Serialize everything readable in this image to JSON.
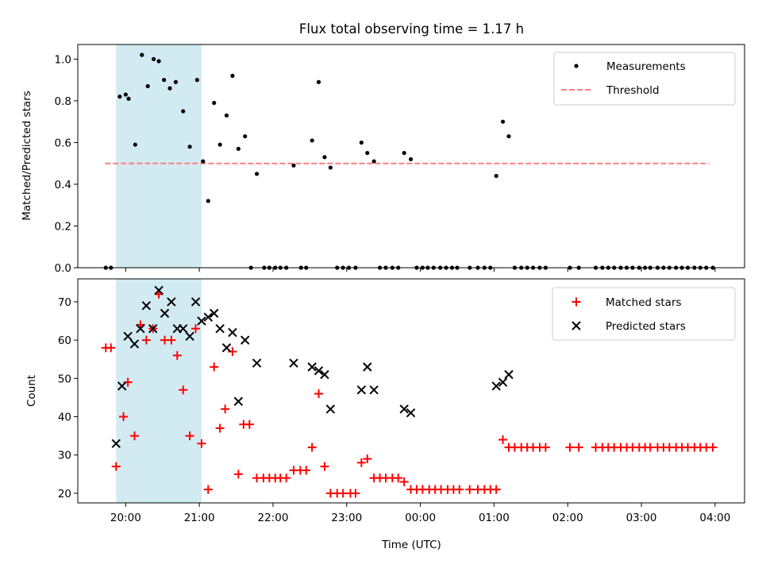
{
  "title": "Flux total observing time = 1.17 h",
  "colors": {
    "measurement": "#000000",
    "threshold": "#ff7f7f",
    "matched": "#ff0000",
    "predicted": "#000000",
    "shade": "#add8e6"
  },
  "chart_data": [
    {
      "type": "scatter",
      "ylabel": "Matched/Predicted stars",
      "xlim": [
        19.35,
        4.4
      ],
      "ylim": [
        0,
        1.07
      ],
      "yticks": [
        0.0,
        0.2,
        0.4,
        0.6,
        0.8,
        1.0
      ],
      "ytick_labels": [
        "0.0",
        "0.2",
        "0.4",
        "0.6",
        "0.8",
        "1.0"
      ],
      "threshold": 0.5,
      "threshold_range": [
        19.72,
        3.92
      ],
      "shaded_range": [
        19.87,
        21.03
      ],
      "legend": {
        "location": "upper right",
        "entries": [
          "Measurements",
          "Threshold"
        ]
      },
      "series": [
        {
          "name": "Measurements",
          "points": [
            [
              19.73,
              0.0
            ],
            [
              19.8,
              0.0
            ],
            [
              19.92,
              0.82
            ],
            [
              20.0,
              0.83
            ],
            [
              20.04,
              0.81
            ],
            [
              20.13,
              0.59
            ],
            [
              20.22,
              1.02
            ],
            [
              20.3,
              0.87
            ],
            [
              20.38,
              1.0
            ],
            [
              20.45,
              0.99
            ],
            [
              20.52,
              0.9
            ],
            [
              20.6,
              0.86
            ],
            [
              20.68,
              0.89
            ],
            [
              20.78,
              0.75
            ],
            [
              20.87,
              0.58
            ],
            [
              20.97,
              0.9
            ],
            [
              21.05,
              0.51
            ],
            [
              21.12,
              0.32
            ],
            [
              21.2,
              0.79
            ],
            [
              21.28,
              0.59
            ],
            [
              21.37,
              0.73
            ],
            [
              21.45,
              0.92
            ],
            [
              21.53,
              0.57
            ],
            [
              21.62,
              0.63
            ],
            [
              21.7,
              0.0
            ],
            [
              21.78,
              0.45
            ],
            [
              21.88,
              0.0
            ],
            [
              21.95,
              0.0
            ],
            [
              22.03,
              0.0
            ],
            [
              22.1,
              0.0
            ],
            [
              22.18,
              0.0
            ],
            [
              22.28,
              0.49
            ],
            [
              22.38,
              0.0
            ],
            [
              22.45,
              0.0
            ],
            [
              22.53,
              0.61
            ],
            [
              22.62,
              0.89
            ],
            [
              22.7,
              0.53
            ],
            [
              22.78,
              0.48
            ],
            [
              22.87,
              0.0
            ],
            [
              22.95,
              0.0
            ],
            [
              23.03,
              0.0
            ],
            [
              23.12,
              0.0
            ],
            [
              23.2,
              0.6
            ],
            [
              23.28,
              0.55
            ],
            [
              23.37,
              0.51
            ],
            [
              23.45,
              0.0
            ],
            [
              23.53,
              0.0
            ],
            [
              23.62,
              0.0
            ],
            [
              23.7,
              0.0
            ],
            [
              23.78,
              0.55
            ],
            [
              23.87,
              0.52
            ],
            [
              23.95,
              0.0
            ],
            [
              24.03,
              0.0
            ],
            [
              24.1,
              0.0
            ],
            [
              24.18,
              0.0
            ],
            [
              24.27,
              0.0
            ],
            [
              24.35,
              0.0
            ],
            [
              24.43,
              0.0
            ],
            [
              24.5,
              0.0
            ],
            [
              24.67,
              0.0
            ],
            [
              24.78,
              0.0
            ],
            [
              24.87,
              0.0
            ],
            [
              24.95,
              0.0
            ],
            [
              25.03,
              0.44
            ],
            [
              25.12,
              0.7
            ],
            [
              25.2,
              0.63
            ],
            [
              25.28,
              0.0
            ],
            [
              25.37,
              0.0
            ],
            [
              25.45,
              0.0
            ],
            [
              25.53,
              0.0
            ],
            [
              25.62,
              0.0
            ],
            [
              25.7,
              0.0
            ],
            [
              26.03,
              0.0
            ],
            [
              26.15,
              0.0
            ],
            [
              26.38,
              0.0
            ],
            [
              26.47,
              0.0
            ],
            [
              26.55,
              0.0
            ],
            [
              26.63,
              0.0
            ],
            [
              26.72,
              0.0
            ],
            [
              26.8,
              0.0
            ],
            [
              26.88,
              0.0
            ],
            [
              26.97,
              0.0
            ],
            [
              27.05,
              0.0
            ],
            [
              27.12,
              0.0
            ],
            [
              27.22,
              0.0
            ],
            [
              27.3,
              0.0
            ],
            [
              27.38,
              0.0
            ],
            [
              27.47,
              0.0
            ],
            [
              27.55,
              0.0
            ],
            [
              27.63,
              0.0
            ],
            [
              27.72,
              0.0
            ],
            [
              27.8,
              0.0
            ],
            [
              27.88,
              0.0
            ],
            [
              27.97,
              0.0
            ]
          ]
        }
      ]
    },
    {
      "type": "scatter",
      "xlabel": "Time (UTC)",
      "ylabel": "Count",
      "xlim": [
        19.35,
        4.4
      ],
      "ylim": [
        17.5,
        76
      ],
      "yticks": [
        20,
        30,
        40,
        50,
        60,
        70
      ],
      "ytick_labels": [
        "20",
        "30",
        "40",
        "50",
        "60",
        "70"
      ],
      "xticks": [
        20,
        21,
        22,
        23,
        24,
        25,
        26,
        27,
        28
      ],
      "xtick_labels": [
        "20:00",
        "21:00",
        "22:00",
        "23:00",
        "00:00",
        "01:00",
        "02:00",
        "03:00",
        "04:00"
      ],
      "shaded_range": [
        19.87,
        21.03
      ],
      "legend": {
        "location": "upper right",
        "entries": [
          "Matched stars",
          "Predicted stars"
        ]
      },
      "series": [
        {
          "name": "Matched stars",
          "marker": "+",
          "points": [
            [
              19.73,
              58
            ],
            [
              19.8,
              58
            ],
            [
              19.87,
              27
            ],
            [
              19.97,
              40
            ],
            [
              20.03,
              49
            ],
            [
              20.12,
              35
            ],
            [
              20.2,
              64
            ],
            [
              20.28,
              60
            ],
            [
              20.37,
              63
            ],
            [
              20.45,
              72
            ],
            [
              20.53,
              60
            ],
            [
              20.62,
              60
            ],
            [
              20.7,
              56
            ],
            [
              20.78,
              47
            ],
            [
              20.87,
              35
            ],
            [
              20.95,
              63
            ],
            [
              21.03,
              33
            ],
            [
              21.12,
              21
            ],
            [
              21.2,
              53
            ],
            [
              21.28,
              37
            ],
            [
              21.35,
              42
            ],
            [
              21.45,
              57
            ],
            [
              21.53,
              25
            ],
            [
              21.6,
              38
            ],
            [
              21.68,
              38
            ],
            [
              21.78,
              24
            ],
            [
              21.87,
              24
            ],
            [
              21.95,
              24
            ],
            [
              22.03,
              24
            ],
            [
              22.1,
              24
            ],
            [
              22.18,
              24
            ],
            [
              22.28,
              26
            ],
            [
              22.37,
              26
            ],
            [
              22.45,
              26
            ],
            [
              22.53,
              32
            ],
            [
              22.62,
              46
            ],
            [
              22.7,
              27
            ],
            [
              22.78,
              20
            ],
            [
              22.87,
              20
            ],
            [
              22.95,
              20
            ],
            [
              23.05,
              20
            ],
            [
              23.12,
              20
            ],
            [
              23.2,
              28
            ],
            [
              23.28,
              29
            ],
            [
              23.37,
              24
            ],
            [
              23.45,
              24
            ],
            [
              23.53,
              24
            ],
            [
              23.62,
              24
            ],
            [
              23.7,
              24
            ],
            [
              23.78,
              23
            ],
            [
              23.87,
              21
            ],
            [
              23.95,
              21
            ],
            [
              24.03,
              21
            ],
            [
              24.12,
              21
            ],
            [
              24.2,
              21
            ],
            [
              24.28,
              21
            ],
            [
              24.37,
              21
            ],
            [
              24.45,
              21
            ],
            [
              24.53,
              21
            ],
            [
              24.67,
              21
            ],
            [
              24.78,
              21
            ],
            [
              24.87,
              21
            ],
            [
              24.95,
              21
            ],
            [
              25.03,
              21
            ],
            [
              25.12,
              34
            ],
            [
              25.2,
              32
            ],
            [
              25.28,
              32
            ],
            [
              25.37,
              32
            ],
            [
              25.45,
              32
            ],
            [
              25.53,
              32
            ],
            [
              25.62,
              32
            ],
            [
              25.7,
              32
            ],
            [
              26.03,
              32
            ],
            [
              26.15,
              32
            ],
            [
              26.38,
              32
            ],
            [
              26.47,
              32
            ],
            [
              26.55,
              32
            ],
            [
              26.63,
              32
            ],
            [
              26.72,
              32
            ],
            [
              26.8,
              32
            ],
            [
              26.88,
              32
            ],
            [
              26.97,
              32
            ],
            [
              27.05,
              32
            ],
            [
              27.12,
              32
            ],
            [
              27.22,
              32
            ],
            [
              27.3,
              32
            ],
            [
              27.38,
              32
            ],
            [
              27.47,
              32
            ],
            [
              27.55,
              32
            ],
            [
              27.63,
              32
            ],
            [
              27.72,
              32
            ],
            [
              27.8,
              32
            ],
            [
              27.88,
              32
            ],
            [
              27.97,
              32
            ]
          ]
        },
        {
          "name": "Predicted stars",
          "marker": "x",
          "points": [
            [
              19.87,
              33
            ],
            [
              19.95,
              48
            ],
            [
              20.03,
              61
            ],
            [
              20.12,
              59
            ],
            [
              20.2,
              63
            ],
            [
              20.28,
              69
            ],
            [
              20.37,
              63
            ],
            [
              20.45,
              73
            ],
            [
              20.53,
              67
            ],
            [
              20.62,
              70
            ],
            [
              20.7,
              63
            ],
            [
              20.78,
              63
            ],
            [
              20.87,
              61
            ],
            [
              20.95,
              70
            ],
            [
              21.03,
              65
            ],
            [
              21.12,
              66
            ],
            [
              21.2,
              67
            ],
            [
              21.28,
              63
            ],
            [
              21.37,
              58
            ],
            [
              21.45,
              62
            ],
            [
              21.53,
              44
            ],
            [
              21.62,
              60
            ],
            [
              21.78,
              54
            ],
            [
              22.28,
              54
            ],
            [
              22.53,
              53
            ],
            [
              22.62,
              52
            ],
            [
              22.7,
              51
            ],
            [
              22.78,
              42
            ],
            [
              23.2,
              47
            ],
            [
              23.28,
              53
            ],
            [
              23.37,
              47
            ],
            [
              23.78,
              42
            ],
            [
              23.87,
              41
            ],
            [
              25.03,
              48
            ],
            [
              25.12,
              49
            ],
            [
              25.2,
              51
            ]
          ]
        }
      ]
    }
  ]
}
